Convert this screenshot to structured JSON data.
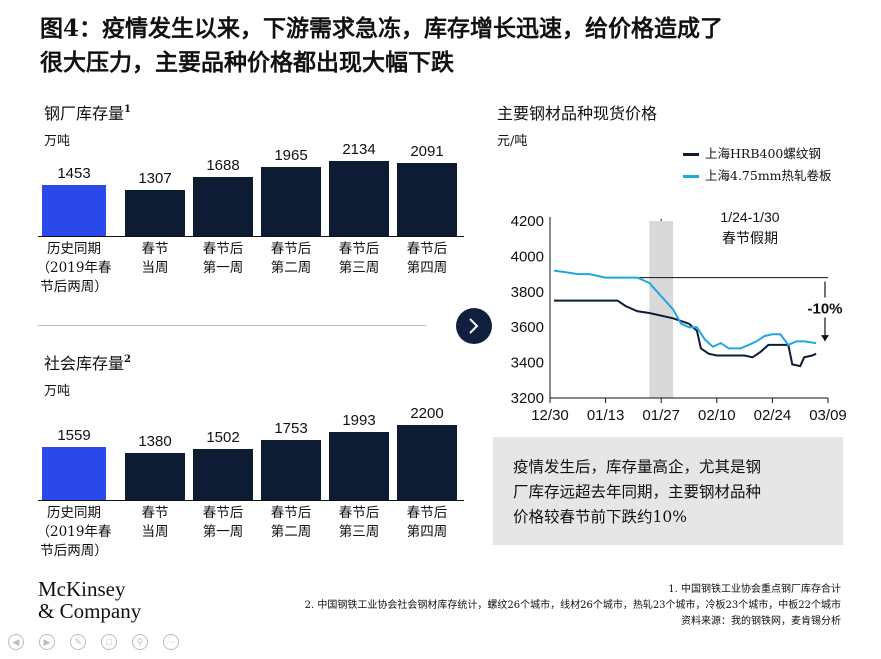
{
  "title": {
    "line1": "图4：疫情发生以来，下游需求急冻，库存增长迅速，给价格造成了",
    "line2": "很大压力，主要品种价格都出现大幅下跌"
  },
  "left_top": {
    "title": "钢厂库存量",
    "note_mark": "1",
    "unit": "万吨"
  },
  "left_bottom": {
    "title": "社会库存量",
    "note_mark": "2",
    "unit": "万吨"
  },
  "right": {
    "title": "主要钢材品种现货价格",
    "unit": "元/吨",
    "period_label_1": "1/24-1/30",
    "period_label_2": "春节假期",
    "change_label": "-10%"
  },
  "callout": {
    "line1": "疫情发生后，库存量高企，尤其是钢",
    "line2": "厂库存远超去年同期，主要钢材品种",
    "line3": "价格较春节前下跌约10%"
  },
  "footnotes": {
    "note1": "1. 中国钢铁工业协会重点钢厂库存合计",
    "note2": "2. 中国钢铁工业协会社会钢材库存统计，螺纹26个城市，线材26个城市，热轧23个城市，冷板23个城市，中板22个城市",
    "source": "资料来源：我的钢铁网，麦肯锡分析"
  },
  "logo": {
    "line1": "McKinsey",
    "line2": "& Company"
  },
  "colors": {
    "navy": "#0d1b33",
    "blue": "#2b49e8",
    "cyan": "#1ea7e1",
    "shade": "#d9d9d9"
  },
  "chart_data": [
    {
      "type": "bar",
      "title": "钢厂库存量",
      "ylabel": "万吨",
      "categories": [
        [
          "历史同期",
          "（2019年春",
          "节后两周）"
        ],
        [
          "春节",
          "当周"
        ],
        [
          "春节后",
          "第一周"
        ],
        [
          "春节后",
          "第二周"
        ],
        [
          "春节后",
          "第三周"
        ],
        [
          "春节后",
          "第四周"
        ]
      ],
      "values": [
        1453,
        1307,
        1688,
        1965,
        2134,
        2091
      ],
      "ylim": [
        0,
        2134
      ]
    },
    {
      "type": "bar",
      "title": "社会库存量",
      "ylabel": "万吨",
      "categories": [
        [
          "历史同期",
          "（2019年春",
          "节后两周）"
        ],
        [
          "春节",
          "当周"
        ],
        [
          "春节后",
          "第一周"
        ],
        [
          "春节后",
          "第二周"
        ],
        [
          "春节后",
          "第三周"
        ],
        [
          "春节后",
          "第四周"
        ]
      ],
      "values": [
        1559,
        1380,
        1502,
        1753,
        1993,
        2200
      ],
      "ylim": [
        0,
        2200
      ]
    },
    {
      "type": "line",
      "title": "主要钢材品种现货价格",
      "ylabel": "元/吨",
      "ylim": [
        3200,
        4200
      ],
      "yticks": [
        "3200",
        "3400",
        "3600",
        "3800",
        "4000",
        "4200"
      ],
      "xlim": [
        "2019-12-30",
        "2020-03-09"
      ],
      "xticks": [
        "12/30",
        "01/13",
        "01/27",
        "02/10",
        "02/24",
        "03/09"
      ],
      "shaded_period": [
        "2020-01-24",
        "2020-01-30"
      ],
      "reference_line": 3880,
      "series": [
        {
          "name": "上海HRB400螺纹钢",
          "color": "#0d1b33",
          "points": [
            [
              "2019-12-31",
              3750
            ],
            [
              "2020-01-03",
              3750
            ],
            [
              "2020-01-08",
              3750
            ],
            [
              "2020-01-13",
              3750
            ],
            [
              "2020-01-16",
              3750
            ],
            [
              "2020-01-18",
              3720
            ],
            [
              "2020-01-21",
              3690
            ],
            [
              "2020-01-24",
              3680
            ],
            [
              "2020-01-30",
              3650
            ],
            [
              "2020-02-03",
              3620
            ],
            [
              "2020-02-05",
              3580
            ],
            [
              "2020-02-06",
              3480
            ],
            [
              "2020-02-08",
              3450
            ],
            [
              "2020-02-10",
              3440
            ],
            [
              "2020-02-14",
              3440
            ],
            [
              "2020-02-17",
              3440
            ],
            [
              "2020-02-19",
              3430
            ],
            [
              "2020-02-21",
              3460
            ],
            [
              "2020-02-23",
              3500
            ],
            [
              "2020-02-26",
              3500
            ],
            [
              "2020-02-28",
              3500
            ],
            [
              "2020-02-29",
              3390
            ],
            [
              "2020-03-02",
              3380
            ],
            [
              "2020-03-03",
              3430
            ],
            [
              "2020-03-05",
              3440
            ],
            [
              "2020-03-06",
              3450
            ]
          ]
        },
        {
          "name": "上海4.75mm热轧卷板",
          "color": "#1ea7e1",
          "points": [
            [
              "2019-12-31",
              3920
            ],
            [
              "2020-01-03",
              3910
            ],
            [
              "2020-01-06",
              3900
            ],
            [
              "2020-01-09",
              3900
            ],
            [
              "2020-01-13",
              3880
            ],
            [
              "2020-01-16",
              3880
            ],
            [
              "2020-01-21",
              3880
            ],
            [
              "2020-01-24",
              3850
            ],
            [
              "2020-01-30",
              3700
            ],
            [
              "2020-02-01",
              3620
            ],
            [
              "2020-02-03",
              3600
            ],
            [
              "2020-02-05",
              3600
            ],
            [
              "2020-02-07",
              3530
            ],
            [
              "2020-02-09",
              3490
            ],
            [
              "2020-02-11",
              3510
            ],
            [
              "2020-02-13",
              3480
            ],
            [
              "2020-02-16",
              3480
            ],
            [
              "2020-02-18",
              3500
            ],
            [
              "2020-02-20",
              3520
            ],
            [
              "2020-02-22",
              3550
            ],
            [
              "2020-02-24",
              3560
            ],
            [
              "2020-02-26",
              3560
            ],
            [
              "2020-02-28",
              3500
            ],
            [
              "2020-03-01",
              3520
            ],
            [
              "2020-03-03",
              3520
            ],
            [
              "2020-03-06",
              3510
            ]
          ]
        }
      ]
    }
  ]
}
